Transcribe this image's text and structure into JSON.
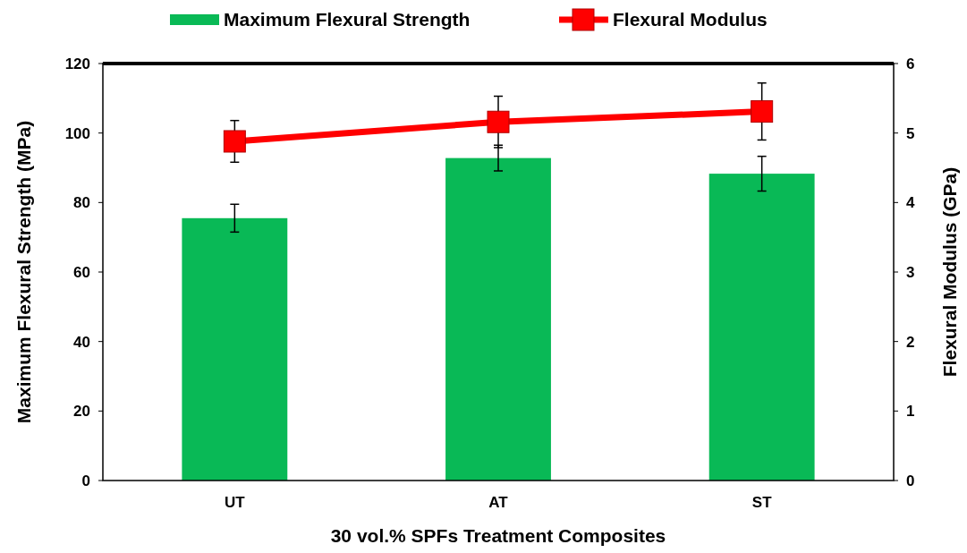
{
  "chart_data": {
    "type": "bar",
    "categories": [
      "UT",
      "AT",
      "ST"
    ],
    "xlabel": "30 vol.% SPFs Treatment Composites",
    "ylabel": "Maximum Flexural Strength (MPa)",
    "y2label": "Flexural Modulus (GPa)",
    "ylim": [
      0,
      120
    ],
    "yticks": [
      0,
      20,
      40,
      60,
      80,
      100,
      120
    ],
    "y2lim": [
      0,
      6
    ],
    "y2ticks": [
      0,
      1,
      2,
      3,
      4,
      5,
      6
    ],
    "legend": "top",
    "grid": false,
    "marker": "square",
    "series": [
      {
        "name": "Maximum Flexural Strength",
        "color": "#09b956",
        "values": [
          75.5,
          92.8,
          88.3
        ],
        "errors": [
          4,
          3.7,
          5
        ]
      },
      {
        "name": "Flexural Modulus",
        "type": "line",
        "axis": "y2",
        "color": "#ff0000",
        "values": [
          4.88,
          5.16,
          5.31
        ],
        "errors": [
          0.3,
          0.37,
          0.41
        ]
      }
    ]
  }
}
